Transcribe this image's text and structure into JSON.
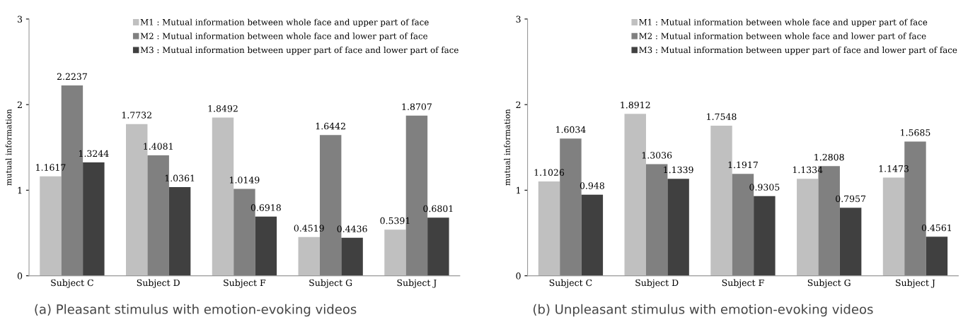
{
  "chart_data": [
    {
      "type": "bar",
      "ylabel": "mutual information",
      "categories": [
        "Subject C",
        "Subject D",
        "Subject F",
        "Subject G",
        "Subject J"
      ],
      "ylim": [
        0,
        3
      ],
      "yticks": [
        0,
        1,
        2,
        3
      ],
      "grid": false,
      "legend": "top",
      "data_labels": true,
      "series": [
        {
          "name": "M1 : Mutual information between whole face and upper part of face",
          "color": "#c0c0c0",
          "values": [
            1.1617,
            1.7732,
            1.8492,
            0.4519,
            0.5391
          ]
        },
        {
          "name": "M2 : Mutual information between whole face and lower part of face",
          "color": "#808080",
          "values": [
            2.2237,
            1.4081,
            1.0149,
            1.6442,
            1.8707
          ]
        },
        {
          "name": "M3 : Mutual information between upper part of face and lower part of face",
          "color": "#404040",
          "values": [
            1.3244,
            1.0361,
            0.6918,
            0.4436,
            0.6801
          ]
        }
      ],
      "annotations": [
        "(a) Pleasant stimulus with emotion-evoking videos"
      ]
    },
    {
      "type": "bar",
      "ylabel": "mutual information",
      "categories": [
        "Subject C",
        "Subject D",
        "Subject F",
        "Subject G",
        "Subject J"
      ],
      "ylim": [
        0,
        3
      ],
      "yticks": [
        0,
        1,
        2,
        3
      ],
      "grid": false,
      "legend": "top",
      "data_labels": true,
      "series": [
        {
          "name": "M1 : Mutual information between whole face and upper part of face",
          "color": "#c0c0c0",
          "values": [
            1.1026,
            1.8912,
            1.7548,
            1.1334,
            1.1473
          ]
        },
        {
          "name": "M2 : Mutual information between whole face and lower part of face",
          "color": "#808080",
          "values": [
            1.6034,
            1.3036,
            1.1917,
            1.2808,
            1.5685
          ]
        },
        {
          "name": "M3 : Mutual information between upper part of face and lower part of face",
          "color": "#404040",
          "values": [
            0.948,
            1.1339,
            0.9305,
            0.7957,
            0.4561
          ]
        }
      ],
      "annotations": [
        "(b) Unpleasant stimulus with emotion-evoking videos"
      ]
    }
  ]
}
